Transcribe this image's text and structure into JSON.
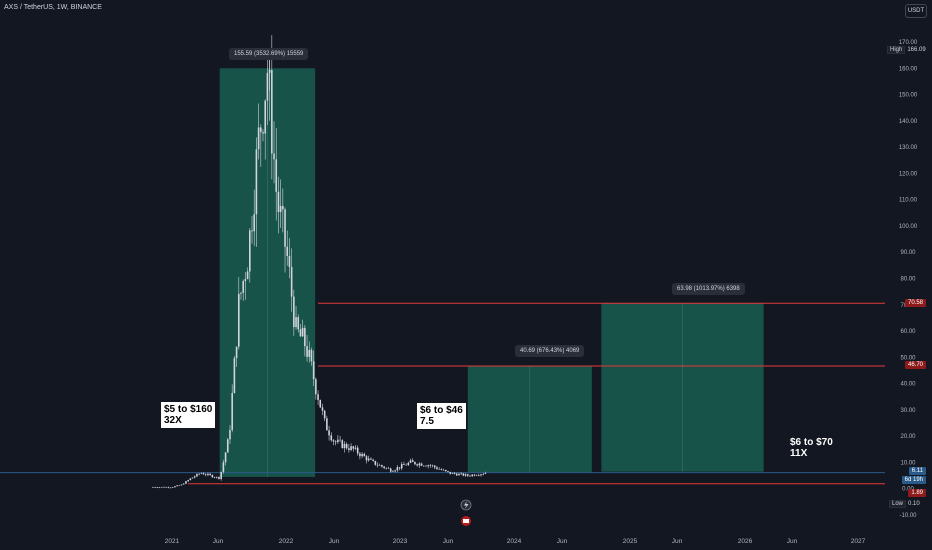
{
  "header": {
    "symbol_title": "AXS / TetherUS, 1W, BINANCE",
    "currency_label": "USDT"
  },
  "annotations": {
    "note1_line1": "$5 to $160",
    "note1_line2": "32X",
    "note2_line1": "$6 to $46",
    "note2_line2": "7.5",
    "note3_line1": "$6 to $70",
    "note3_line2": "11X"
  },
  "measure_labels": {
    "m1": "155.59 (3532.69%) 15559",
    "m2": "40.69 (676.43%) 4069",
    "m3": "63.98 (1013.97%) 6398"
  },
  "price_badges": {
    "high_label": "High",
    "high_value": "166.09",
    "level_70": "70.58",
    "level_46": "46.70",
    "current": "6.11",
    "countdown": "6d 19h",
    "level_1_89": "1.89",
    "low_label": "Low",
    "low_value": "0.10"
  },
  "colors": {
    "background": "#131722",
    "measure_fill": "#1a5e50",
    "resistance_line": "#e53935",
    "support_line": "#e53935",
    "candle_up": "#d1d4dc",
    "candle_down": "#d1d4dc",
    "current_price_line": "#2a5a8a"
  },
  "chart_data": {
    "type": "candlestick",
    "title": "AXS / TetherUS, 1W, BINANCE",
    "y_ticks": [
      "170.00",
      "160.00",
      "150.00",
      "140.00",
      "130.00",
      "120.00",
      "110.00",
      "100.00",
      "90.00",
      "80.00",
      "70.00",
      "60.00",
      "50.00",
      "40.00",
      "30.00",
      "20.00",
      "10.00",
      "0.00",
      "-10.00"
    ],
    "x_ticks": [
      "2021",
      "Jun",
      "2022",
      "Jun",
      "2023",
      "Jun",
      "2024",
      "Jun",
      "2025",
      "Jun",
      "2026",
      "Jun",
      "2027"
    ],
    "ylim": [
      -12,
      173
    ],
    "price_path": [
      [
        "2020-11",
        0.6
      ],
      [
        "2021-01",
        0.6
      ],
      [
        "2021-02",
        1.5
      ],
      [
        "2021-03",
        4
      ],
      [
        "2021-04",
        6
      ],
      [
        "2021-05",
        5
      ],
      [
        "2021-06",
        4
      ],
      [
        "2021-07",
        20
      ],
      [
        "2021-08",
        70
      ],
      [
        "2021-09",
        90
      ],
      [
        "2021-10",
        130
      ],
      [
        "2021-11",
        160
      ],
      [
        "2021-12",
        110
      ],
      [
        "2022-01",
        90
      ],
      [
        "2022-02",
        60
      ],
      [
        "2022-03",
        55
      ],
      [
        "2022-04",
        40
      ],
      [
        "2022-05",
        25
      ],
      [
        "2022-06",
        18
      ],
      [
        "2022-08",
        15
      ],
      [
        "2022-10",
        10
      ],
      [
        "2022-12",
        7
      ],
      [
        "2023-02",
        10
      ],
      [
        "2023-04",
        9
      ],
      [
        "2023-06",
        6
      ],
      [
        "2023-08",
        5
      ],
      [
        "2023-10",
        6.11
      ]
    ],
    "levels": [
      70.58,
      46.7,
      6.11,
      1.89
    ],
    "high": 166.09,
    "low": 0.1,
    "measurements": [
      {
        "label": "155.59 (3532.69%) 15559",
        "from": "2021-06",
        "to": "2022-04",
        "low": 4.5,
        "high": 160
      },
      {
        "label": "40.69 (676.43%) 4069",
        "from": "2023-08",
        "to": "2024-09",
        "low": 6,
        "high": 46.7
      },
      {
        "label": "63.98 (1013.97%) 6398",
        "from": "2024-10",
        "to": "2026-03",
        "low": 6.5,
        "high": 70.58
      }
    ]
  }
}
